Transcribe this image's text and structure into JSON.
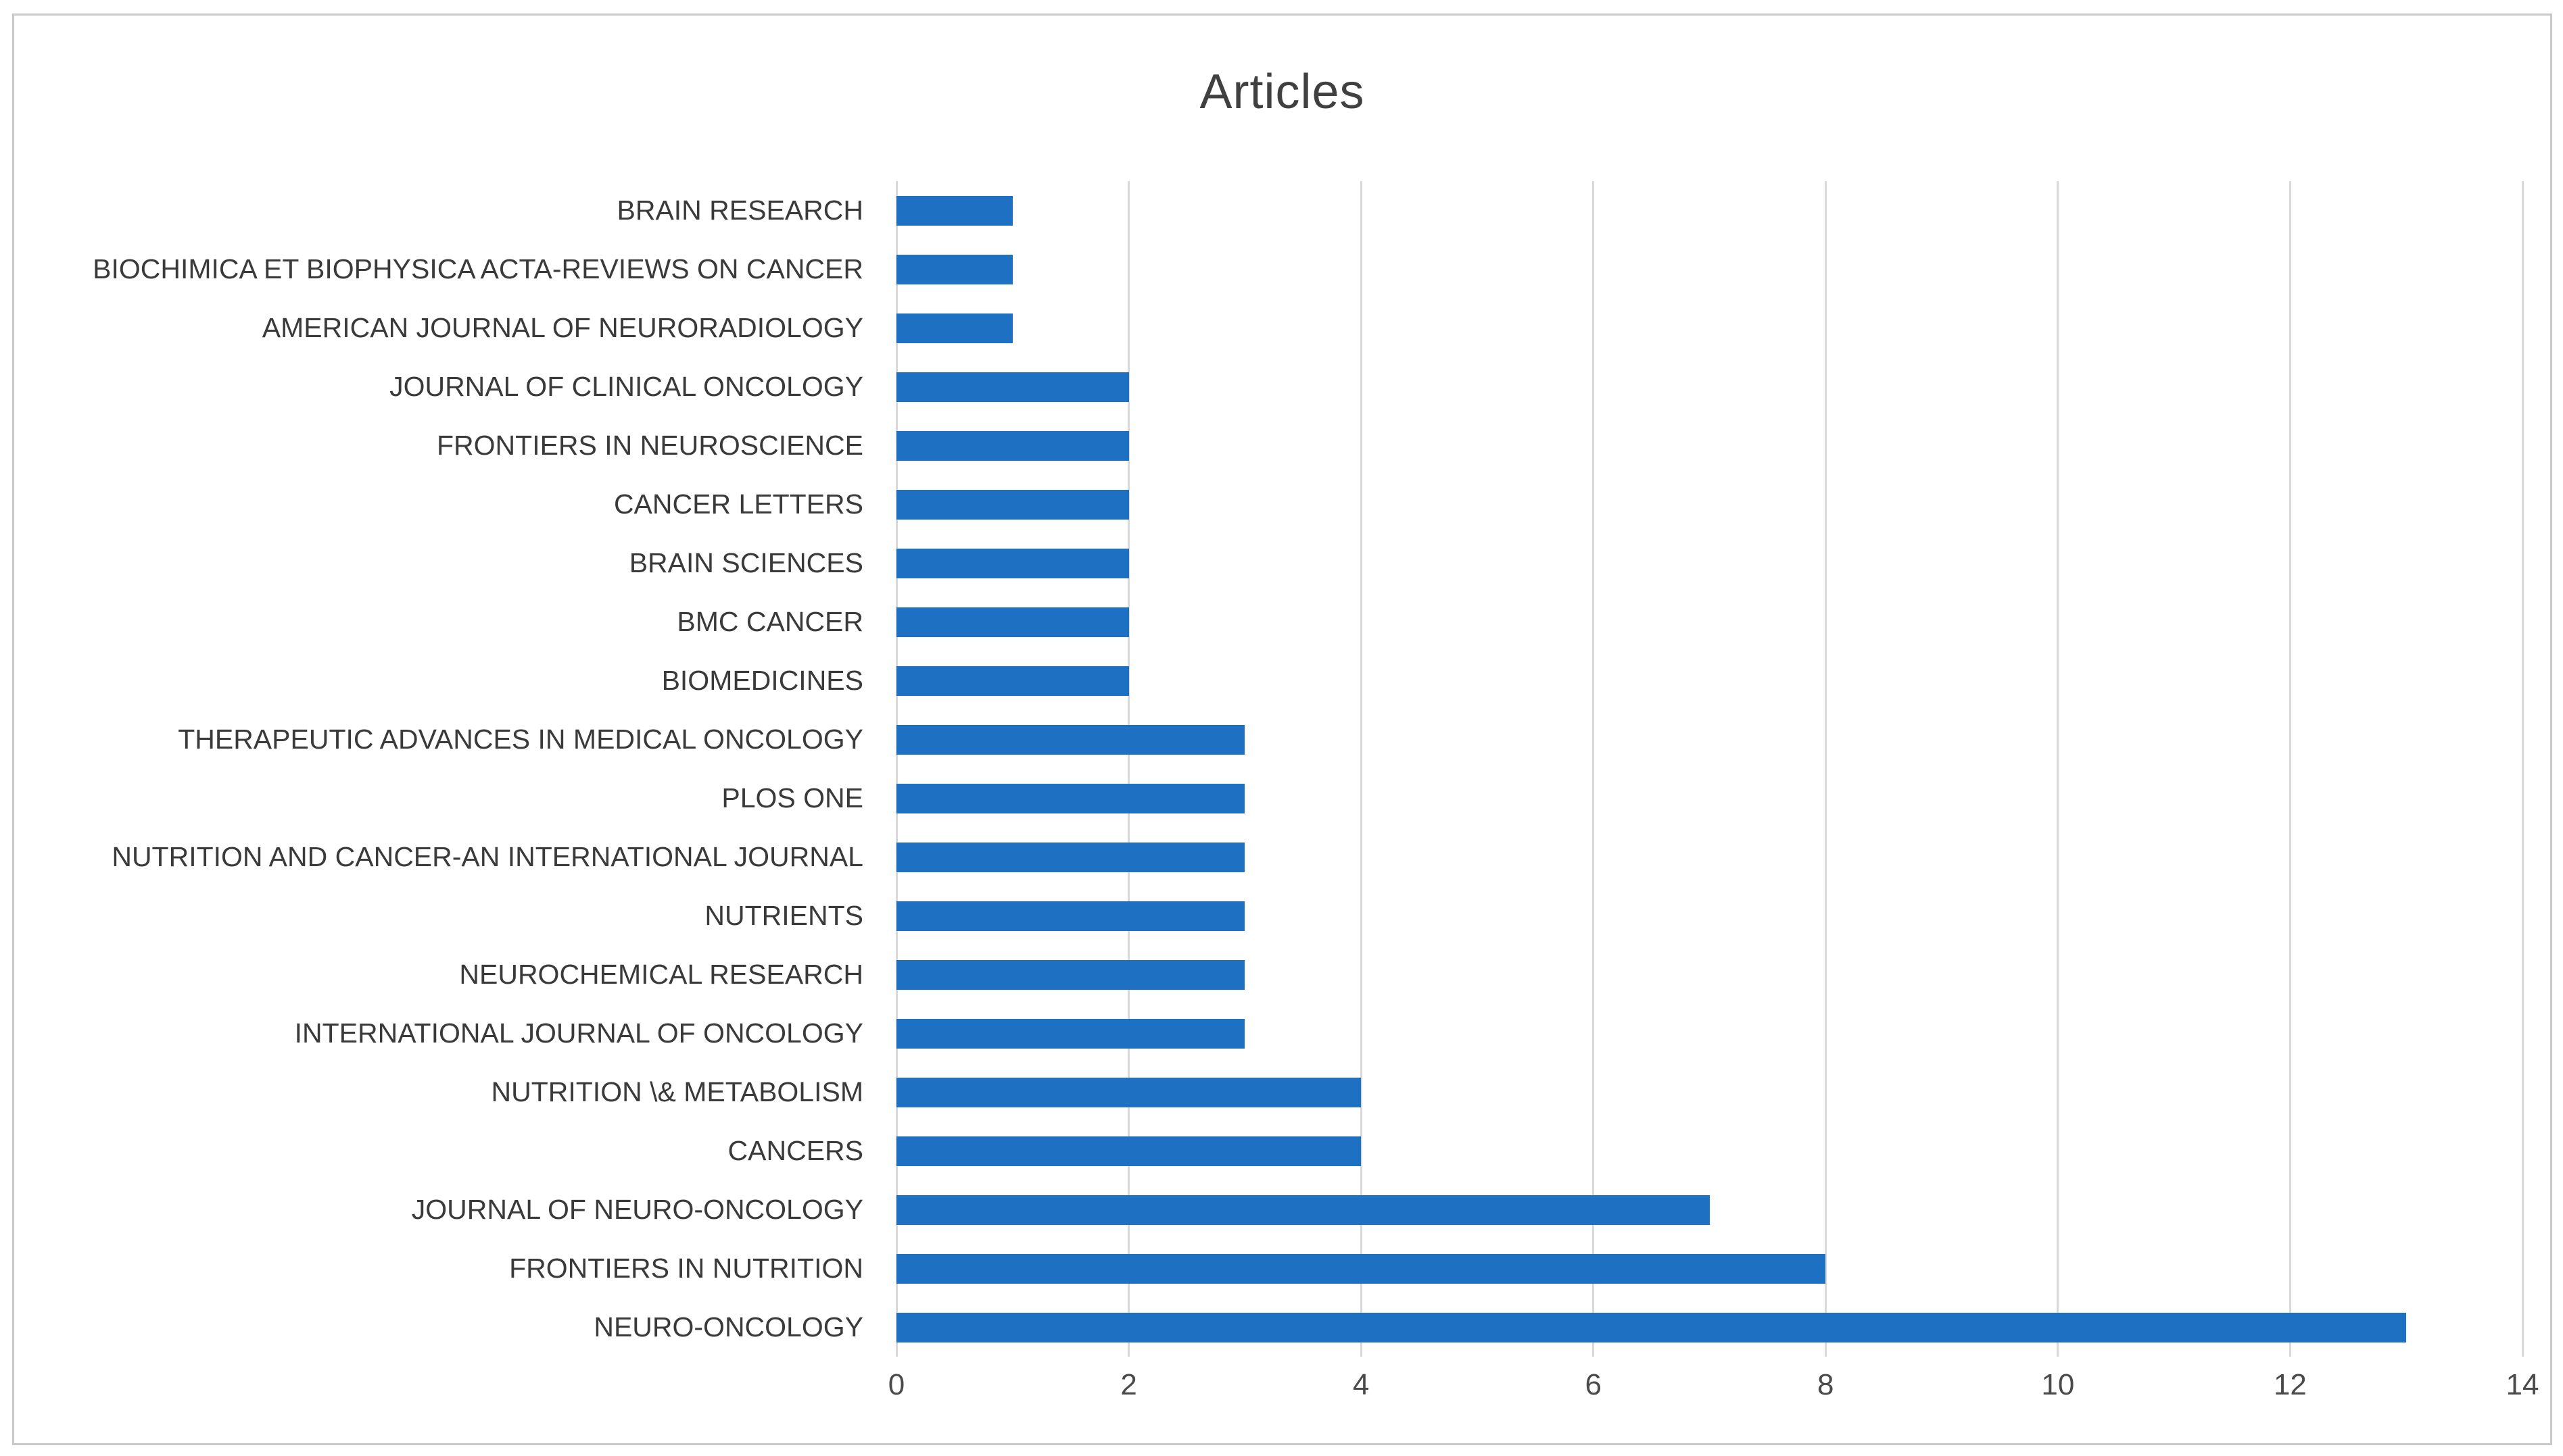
{
  "chart_data": {
    "type": "bar",
    "orientation": "horizontal",
    "title": "Articles",
    "xlabel": "",
    "ylabel": "",
    "categories": [
      "BRAIN RESEARCH",
      "BIOCHIMICA ET BIOPHYSICA ACTA-REVIEWS ON CANCER",
      "AMERICAN JOURNAL OF NEURORADIOLOGY",
      "JOURNAL OF CLINICAL ONCOLOGY",
      "FRONTIERS IN NEUROSCIENCE",
      "CANCER LETTERS",
      "BRAIN SCIENCES",
      "BMC CANCER",
      "BIOMEDICINES",
      "THERAPEUTIC ADVANCES IN MEDICAL ONCOLOGY",
      "PLOS ONE",
      "NUTRITION AND CANCER-AN INTERNATIONAL JOURNAL",
      "NUTRIENTS",
      "NEUROCHEMICAL RESEARCH",
      "INTERNATIONAL JOURNAL OF ONCOLOGY",
      "NUTRITION \\& METABOLISM",
      "CANCERS",
      "JOURNAL OF NEURO-ONCOLOGY",
      "FRONTIERS IN NUTRITION",
      "NEURO-ONCOLOGY"
    ],
    "values": [
      1,
      1,
      1,
      2,
      2,
      2,
      2,
      2,
      2,
      3,
      3,
      3,
      3,
      3,
      3,
      4,
      4,
      7,
      8,
      13
    ],
    "xlim": [
      0,
      14
    ],
    "xticks": [
      0,
      2,
      4,
      6,
      8,
      10,
      12,
      14
    ],
    "grid": "vertical-only",
    "legend": "none",
    "colors": {
      "bar": "#1E70C3",
      "grid": "#D9D9D9",
      "title": "#404040",
      "category_labels": "#3A3A3A",
      "tick_labels": "#4A4A4A",
      "frame_border": "#C9C9C9",
      "background": "#FFFFFF"
    }
  }
}
